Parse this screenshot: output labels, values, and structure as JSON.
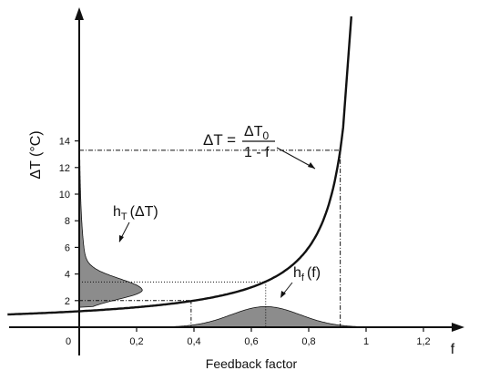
{
  "chart_data": {
    "type": "line",
    "title": "",
    "xlabel": "Feedback factor",
    "xlabel_short": "f",
    "ylabel": "ΔT (°C)",
    "xlim": [
      -0.05,
      1.3
    ],
    "ylim": [
      0,
      15
    ],
    "x_ticks": [
      0.2,
      0.4,
      0.6,
      0.8,
      1,
      1.2
    ],
    "x_tick_labels": [
      "0,2",
      "0,4",
      "0,6",
      "0,8",
      "1",
      "1,2"
    ],
    "y_ticks": [
      2,
      4,
      6,
      8,
      10,
      12,
      14
    ],
    "y_tick_labels": [
      "2",
      "4",
      "6",
      "8",
      "10",
      "12",
      "14"
    ],
    "origin_label": "0",
    "grid": false,
    "delta_T0": 1.2,
    "equation": {
      "lhs": "ΔT =",
      "numerator": "ΔT",
      "numerator_sub": "0",
      "denominator": "1 - f"
    },
    "series": [
      {
        "name": "ΔT = ΔT0 / (1 - f)",
        "kind": "curve",
        "function": "deltaT0/(1-f)"
      },
      {
        "name": "h_f(f)",
        "label_main": "h",
        "label_sub": "f",
        "label_arg": "(f)",
        "kind": "gaussian_on_x",
        "mean": 0.65,
        "sd": 0.12,
        "peak": 1.55
      },
      {
        "name": "h_T(ΔT)",
        "label_main": "h",
        "label_sub": "T",
        "label_arg": "(ΔT)",
        "kind": "density_on_y",
        "mode": 2.8,
        "low_cut": 1.5,
        "peak": 0.22
      }
    ],
    "guides": [
      {
        "f": 0.39,
        "dT": 2
      },
      {
        "f": 0.65,
        "dT": 3.4
      },
      {
        "f": 0.91,
        "dT": 13.3
      }
    ],
    "colors": {
      "fill": "#8c8c8c",
      "line": "#111111"
    }
  }
}
